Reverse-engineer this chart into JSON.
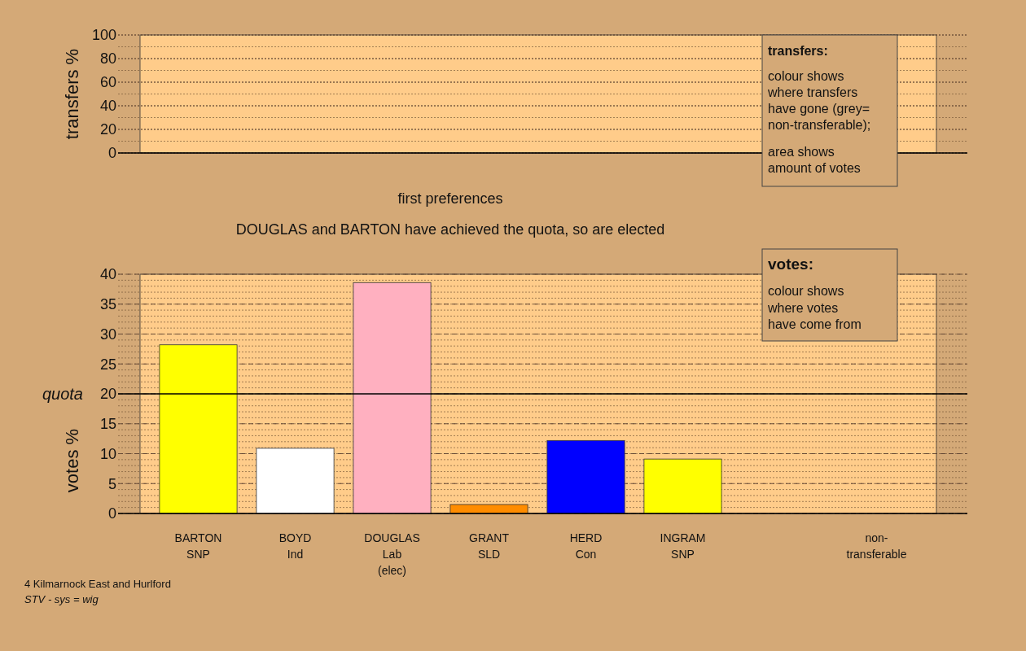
{
  "chart_data": [
    {
      "type": "bar",
      "ylabel": "transfers %",
      "categories": [
        null,
        null,
        null,
        null,
        null,
        null,
        null,
        null
      ],
      "values": [
        null,
        null,
        null,
        null,
        null,
        null,
        null,
        null
      ],
      "ylim": [
        0,
        100
      ],
      "yticks": [
        0,
        20,
        40,
        60,
        80,
        100
      ],
      "grid": "y",
      "tick_labels": "y",
      "annotations": [
        "transfers:",
        "colour shows\nwhere transfers\nhave gone (grey=\nnon-transferable);",
        "area shows\namount of votes"
      ]
    },
    {
      "type": "bar",
      "title": "first preferences",
      "subtitle": "DOUGLAS and BARTON have achieved the quota, so are elected",
      "ylabel": "votes %",
      "categories": [
        "BARTON\nSNP",
        "BOYD\nInd",
        "DOUGLAS\nLab\n(elec)",
        "GRANT\nSLD",
        "HERD\nCon",
        "INGRAM\nSNP",
        null,
        "non-\ntransferable"
      ],
      "values": [
        28.2,
        10.9,
        38.6,
        1.5,
        12.2,
        9.1,
        null,
        0
      ],
      "colors": [
        "#ffff00",
        "#ffffff",
        "#ffb0c0",
        "#ff8c00",
        "#0000ff",
        "#ffff00",
        null,
        "#888888"
      ],
      "ylim": [
        0,
        40
      ],
      "yticks": [
        0,
        5,
        10,
        15,
        20,
        25,
        30,
        35,
        40
      ],
      "grid": "y",
      "ref_lines": [
        {
          "axis": "y",
          "value": 20,
          "label": "quota"
        }
      ],
      "annotations": [
        "votes:",
        "colour shows\nwhere votes\nhave come from",
        "4 Kilmarnock East and Hurlford",
        "STV - sys = wig"
      ]
    }
  ]
}
